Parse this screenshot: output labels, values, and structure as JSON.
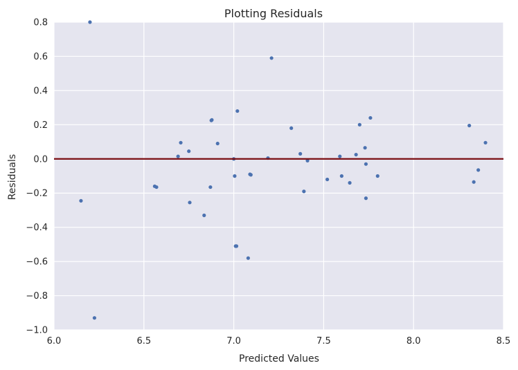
{
  "colors": {
    "plot_bg": "#e5e5ef",
    "grid": "#ffffff",
    "point": "#4c72b0",
    "zero_line": "#7a0d12"
  },
  "chart_data": {
    "type": "scatter",
    "title": "Plotting Residuals",
    "xlabel": "Predicted Values",
    "ylabel": "Residuals",
    "xlim": [
      6.0,
      8.5
    ],
    "ylim": [
      -1.0,
      0.8
    ],
    "xticks": [
      6.0,
      6.5,
      7.0,
      7.5,
      8.0,
      8.5
    ],
    "xtick_labels": [
      "6.0",
      "6.5",
      "7.0",
      "7.5",
      "8.0",
      "8.5"
    ],
    "yticks": [
      -1.0,
      -0.8,
      -0.6,
      -0.4,
      -0.2,
      0.0,
      0.2,
      0.4,
      0.6,
      0.8
    ],
    "ytick_labels": [
      "−1.0",
      "−0.8",
      "−0.6",
      "−0.4",
      "−0.2",
      "0.0",
      "0.2",
      "0.4",
      "0.6",
      "0.8"
    ],
    "grid": true,
    "reference_line_y": 0.0,
    "points": [
      {
        "x": 6.2,
        "y": 0.8
      },
      {
        "x": 6.15,
        "y": -0.245
      },
      {
        "x": 6.225,
        "y": -0.93
      },
      {
        "x": 6.56,
        "y": -0.16
      },
      {
        "x": 6.57,
        "y": -0.165
      },
      {
        "x": 6.69,
        "y": 0.015
      },
      {
        "x": 6.705,
        "y": 0.095
      },
      {
        "x": 6.75,
        "y": 0.045
      },
      {
        "x": 6.755,
        "y": -0.255
      },
      {
        "x": 6.835,
        "y": -0.33
      },
      {
        "x": 6.875,
        "y": 0.225
      },
      {
        "x": 6.878,
        "y": 0.228
      },
      {
        "x": 6.87,
        "y": -0.165
      },
      {
        "x": 6.91,
        "y": 0.09
      },
      {
        "x": 7.0,
        "y": 0.0
      },
      {
        "x": 7.005,
        "y": -0.1
      },
      {
        "x": 7.01,
        "y": -0.51
      },
      {
        "x": 7.015,
        "y": -0.51
      },
      {
        "x": 7.02,
        "y": 0.28
      },
      {
        "x": 7.08,
        "y": -0.58
      },
      {
        "x": 7.09,
        "y": -0.09
      },
      {
        "x": 7.095,
        "y": -0.093
      },
      {
        "x": 7.19,
        "y": 0.005
      },
      {
        "x": 7.21,
        "y": 0.59
      },
      {
        "x": 7.32,
        "y": 0.18
      },
      {
        "x": 7.37,
        "y": 0.03
      },
      {
        "x": 7.39,
        "y": -0.19
      },
      {
        "x": 7.41,
        "y": -0.01
      },
      {
        "x": 7.52,
        "y": -0.12
      },
      {
        "x": 7.59,
        "y": 0.015
      },
      {
        "x": 7.6,
        "y": -0.1
      },
      {
        "x": 7.645,
        "y": -0.14
      },
      {
        "x": 7.68,
        "y": 0.025
      },
      {
        "x": 7.7,
        "y": 0.2
      },
      {
        "x": 7.73,
        "y": 0.065
      },
      {
        "x": 7.735,
        "y": -0.03
      },
      {
        "x": 7.735,
        "y": -0.23
      },
      {
        "x": 7.76,
        "y": 0.24
      },
      {
        "x": 7.8,
        "y": -0.1
      },
      {
        "x": 8.31,
        "y": 0.195
      },
      {
        "x": 8.335,
        "y": -0.135
      },
      {
        "x": 8.36,
        "y": -0.065
      },
      {
        "x": 8.4,
        "y": 0.095
      }
    ]
  }
}
